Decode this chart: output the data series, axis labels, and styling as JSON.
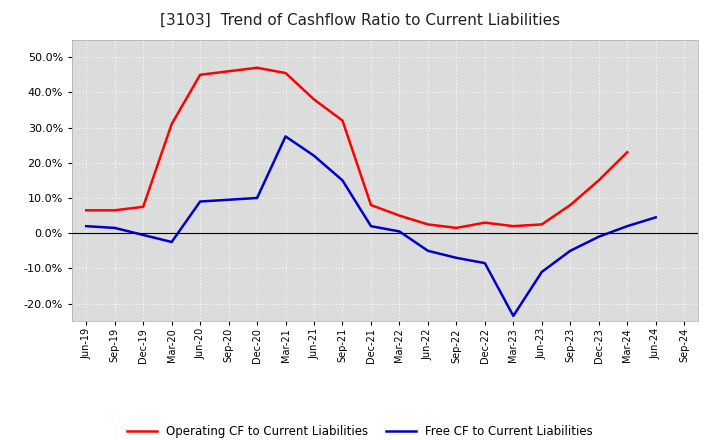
{
  "title": "[3103]  Trend of Cashflow Ratio to Current Liabilities",
  "title_fontsize": 11,
  "background_color": "#ffffff",
  "plot_background_color": "#dcdcdc",
  "grid_color": "#ffffff",
  "x_labels": [
    "Jun-19",
    "Sep-19",
    "Dec-19",
    "Mar-20",
    "Jun-20",
    "Sep-20",
    "Dec-20",
    "Mar-21",
    "Jun-21",
    "Sep-21",
    "Dec-21",
    "Mar-22",
    "Jun-22",
    "Sep-22",
    "Dec-22",
    "Mar-23",
    "Jun-23",
    "Sep-23",
    "Dec-23",
    "Mar-24",
    "Jun-24",
    "Sep-24"
  ],
  "operating_cf": [
    6.5,
    6.5,
    7.5,
    31.0,
    45.0,
    46.0,
    47.0,
    45.5,
    38.0,
    32.0,
    8.0,
    5.0,
    2.5,
    1.5,
    3.0,
    2.0,
    2.5,
    8.0,
    15.0,
    23.0,
    null,
    null
  ],
  "free_cf": [
    2.0,
    1.5,
    -0.5,
    -2.5,
    9.0,
    9.5,
    10.0,
    27.5,
    22.0,
    15.0,
    2.0,
    0.5,
    -5.0,
    -7.0,
    -8.5,
    -23.5,
    -11.0,
    -5.0,
    -1.0,
    2.0,
    4.5,
    null
  ],
  "operating_color": "#ff0000",
  "free_color": "#0000cc",
  "ylim": [
    -25.0,
    55.0
  ],
  "yticks": [
    -20.0,
    -10.0,
    0.0,
    10.0,
    20.0,
    30.0,
    40.0,
    50.0
  ],
  "legend_operating": "Operating CF to Current Liabilities",
  "legend_free": "Free CF to Current Liabilities"
}
